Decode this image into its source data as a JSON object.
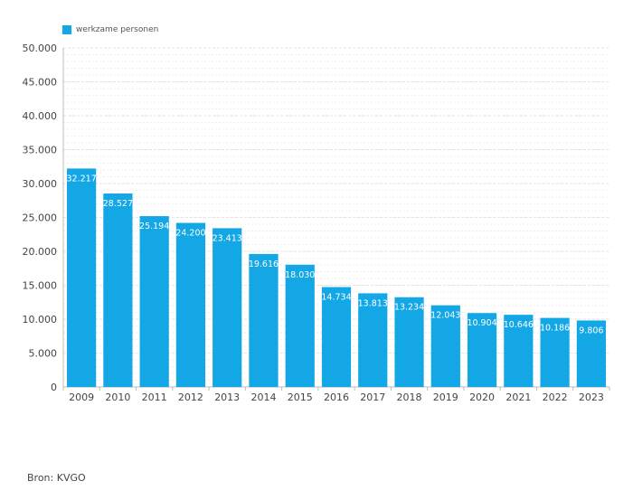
{
  "legend": {
    "label": "werkzame personen"
  },
  "source": "Bron: KVGO",
  "colors": {
    "bar": "#14a7e6",
    "grid": "#e3e3e3",
    "axis": "#bbbbbb",
    "text": "#444444"
  },
  "chart_data": {
    "type": "bar",
    "categories": [
      "2009",
      "2010",
      "2011",
      "2012",
      "2013",
      "2014",
      "2015",
      "2016",
      "2017",
      "2018",
      "2019",
      "2020",
      "2021",
      "2022",
      "2023"
    ],
    "series": [
      {
        "name": "werkzame personen",
        "values": [
          32217,
          28527,
          25194,
          24200,
          23413,
          19616,
          18030,
          14734,
          13813,
          13234,
          12043,
          10904,
          10646,
          10186,
          9806
        ],
        "labels": [
          "32.217",
          "28.527",
          "25.194",
          "24.200",
          "23.413",
          "19.616",
          "18.030",
          "14.734",
          "13.813",
          "13.234",
          "12.043",
          "10.904",
          "10.646",
          "10.186",
          "9.806"
        ]
      }
    ],
    "ylim": [
      0,
      50000
    ],
    "yticks": [
      0,
      5000,
      10000,
      15000,
      20000,
      25000,
      30000,
      35000,
      40000,
      45000,
      50000
    ],
    "ytick_labels": [
      "0",
      "5.000",
      "10.000",
      "15.000",
      "20.000",
      "25.000",
      "30.000",
      "35.000",
      "40.000",
      "45.000",
      "50.000"
    ],
    "minor_step": 1000,
    "grid": true,
    "legend_position": "top-left"
  }
}
